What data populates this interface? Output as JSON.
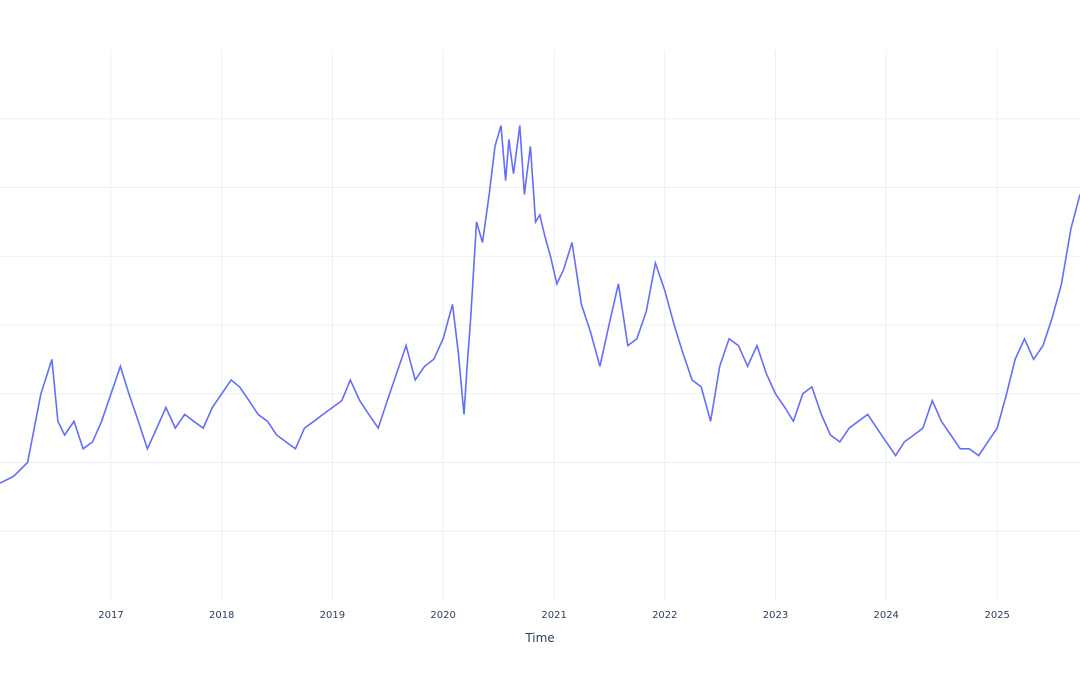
{
  "chart_data": {
    "type": "line",
    "title": "",
    "xlabel": "Time",
    "ylabel": "",
    "grid": true,
    "legend": "none",
    "line_color": "#636efa",
    "grid_color": "#ebf0f8",
    "text_color": "#2a3f5f",
    "xlim": [
      "2016-01-01",
      "2025-10-01"
    ],
    "ylim": [
      1,
      9
    ],
    "x_ticks": [
      "2017",
      "2018",
      "2019",
      "2020",
      "2021",
      "2022",
      "2023",
      "2024",
      "2025"
    ],
    "y_gridlines": [
      2,
      3,
      4,
      5,
      6,
      7,
      8
    ],
    "series": [
      {
        "x": [
          "2016-01-01",
          "2016-02-15",
          "2016-04-01",
          "2016-05-15",
          "2016-06-20",
          "2016-07-10",
          "2016-08-01",
          "2016-09-01",
          "2016-10-01",
          "2016-11-01",
          "2016-12-01",
          "2017-02-01",
          "2017-03-01",
          "2017-04-01",
          "2017-05-01",
          "2017-06-01",
          "2017-07-01",
          "2017-08-01",
          "2017-09-01",
          "2017-10-01",
          "2017-11-01",
          "2017-12-01",
          "2018-02-01",
          "2018-03-01",
          "2018-04-01",
          "2018-05-01",
          "2018-06-01",
          "2018-07-01",
          "2018-08-01",
          "2018-09-01",
          "2018-10-01",
          "2018-11-01",
          "2018-12-01",
          "2019-01-01",
          "2019-02-01",
          "2019-03-01",
          "2019-04-01",
          "2019-05-01",
          "2019-06-01",
          "2019-07-01",
          "2019-08-01",
          "2019-09-01",
          "2019-10-01",
          "2019-11-01",
          "2019-12-01",
          "2020-01-01",
          "2020-02-01",
          "2020-02-20",
          "2020-03-10",
          "2020-03-20",
          "2020-04-01",
          "2020-04-20",
          "2020-05-10",
          "2020-06-01",
          "2020-06-20",
          "2020-07-10",
          "2020-07-25",
          "2020-08-05",
          "2020-08-20",
          "2020-09-10",
          "2020-09-25",
          "2020-10-15",
          "2020-11-01",
          "2020-11-15",
          "2020-12-01",
          "2020-12-20",
          "2021-01-10",
          "2021-02-01",
          "2021-03-01",
          "2021-04-01",
          "2021-05-01",
          "2021-06-01",
          "2021-07-01",
          "2021-08-01",
          "2021-09-01",
          "2021-10-01",
          "2021-11-01",
          "2021-12-01",
          "2022-01-01",
          "2022-02-01",
          "2022-03-01",
          "2022-04-01",
          "2022-05-01",
          "2022-06-01",
          "2022-07-01",
          "2022-08-01",
          "2022-09-01",
          "2022-10-01",
          "2022-11-01",
          "2022-12-01",
          "2023-01-01",
          "2023-02-01",
          "2023-03-01",
          "2023-04-01",
          "2023-05-01",
          "2023-06-01",
          "2023-07-01",
          "2023-08-01",
          "2023-09-01",
          "2023-10-01",
          "2023-11-01",
          "2023-12-01",
          "2024-01-01",
          "2024-02-01",
          "2024-03-01",
          "2024-04-01",
          "2024-05-01",
          "2024-06-01",
          "2024-07-01",
          "2024-08-01",
          "2024-09-01",
          "2024-10-01",
          "2024-11-01",
          "2024-12-01",
          "2025-01-01",
          "2025-02-01",
          "2025-03-01",
          "2025-04-01",
          "2025-05-01",
          "2025-06-01",
          "2025-07-01",
          "2025-08-01",
          "2025-09-01",
          "2025-10-01"
        ],
        "y": [
          2.7,
          2.8,
          3.0,
          4.0,
          4.5,
          3.6,
          3.4,
          3.6,
          3.2,
          3.3,
          3.6,
          4.4,
          4.0,
          3.6,
          3.2,
          3.5,
          3.8,
          3.5,
          3.7,
          3.6,
          3.5,
          3.8,
          4.2,
          4.1,
          3.9,
          3.7,
          3.6,
          3.4,
          3.3,
          3.2,
          3.5,
          3.6,
          3.7,
          3.8,
          3.9,
          4.2,
          3.9,
          3.7,
          3.5,
          3.9,
          4.3,
          4.7,
          4.2,
          4.4,
          4.5,
          4.8,
          5.3,
          4.6,
          3.7,
          4.4,
          5.1,
          6.5,
          6.2,
          6.9,
          7.6,
          7.9,
          7.1,
          7.7,
          7.2,
          7.9,
          6.9,
          7.6,
          6.5,
          6.6,
          6.3,
          6.0,
          5.6,
          5.8,
          6.2,
          5.3,
          4.9,
          4.4,
          5.0,
          5.6,
          4.7,
          4.8,
          5.2,
          5.9,
          5.5,
          5.0,
          4.6,
          4.2,
          4.1,
          3.6,
          4.4,
          4.8,
          4.7,
          4.4,
          4.7,
          4.3,
          4.0,
          3.8,
          3.6,
          4.0,
          4.1,
          3.7,
          3.4,
          3.3,
          3.5,
          3.6,
          3.7,
          3.5,
          3.3,
          3.1,
          3.3,
          3.4,
          3.5,
          3.9,
          3.6,
          3.4,
          3.2,
          3.2,
          3.1,
          3.3,
          3.5,
          4.0,
          4.5,
          4.8,
          4.5,
          4.7,
          5.1,
          5.6,
          6.4,
          6.9
        ]
      }
    ]
  }
}
